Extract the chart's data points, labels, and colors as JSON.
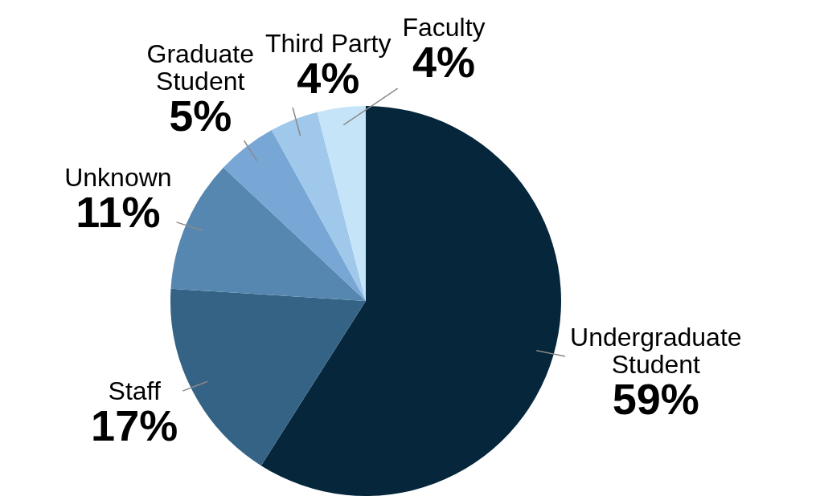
{
  "chart_data": {
    "type": "pie",
    "categories": [
      "Undergraduate Student",
      "Staff",
      "Unknown",
      "Graduate Student",
      "Third Party",
      "Faculty"
    ],
    "values": [
      59,
      17,
      11,
      5,
      4,
      4
    ],
    "value_labels": [
      "59%",
      "17%",
      "11%",
      "5%",
      "4%",
      "4%"
    ],
    "colors": [
      "#05263b",
      "#356385",
      "#5587b0",
      "#78a7d6",
      "#9fc8ea",
      "#c5e4f7"
    ],
    "legend": false
  }
}
